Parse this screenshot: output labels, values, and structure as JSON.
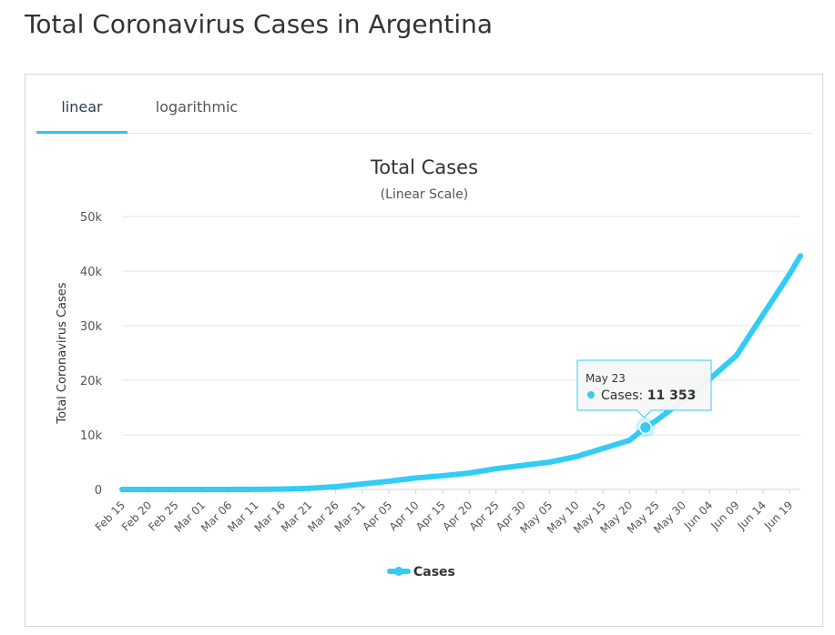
{
  "page": {
    "title": "Total Coronavirus Cases in Argentina"
  },
  "tabs": [
    {
      "label": "linear",
      "active": true
    },
    {
      "label": "logarithmic",
      "active": false
    }
  ],
  "colors": {
    "series": "#33ccf5",
    "active_tab_underline": "#33c3f0",
    "grid": "#e6e6e6"
  },
  "tooltip": {
    "date": "May 23",
    "series_label": "Cases: ",
    "value_text": "11 353"
  },
  "chart_data": {
    "type": "line",
    "title": "Total Cases",
    "subtitle": "(Linear Scale)",
    "xlabel": "",
    "ylabel": "Total Coronavirus Cases",
    "ylim": [
      0,
      50000
    ],
    "yticks": [
      0,
      10000,
      20000,
      30000,
      40000,
      50000
    ],
    "ytick_labels": [
      "0",
      "10k",
      "20k",
      "30k",
      "40k",
      "50k"
    ],
    "x_tick_labels": [
      "Feb 15",
      "Feb 20",
      "Feb 25",
      "Mar 01",
      "Mar 06",
      "Mar 11",
      "Mar 16",
      "Mar 21",
      "Mar 26",
      "Mar 31",
      "Apr 05",
      "Apr 10",
      "Apr 15",
      "Apr 20",
      "Apr 25",
      "Apr 30",
      "May 05",
      "May 10",
      "May 15",
      "May 20",
      "May 25",
      "May 30",
      "Jun 04",
      "Jun 09",
      "Jun 14",
      "Jun 19"
    ],
    "x_range": [
      "Feb 15",
      "Jun 21"
    ],
    "grid": true,
    "legend_position": "bottom-center",
    "series": [
      {
        "name": "Cases",
        "x": [
          "Feb 15",
          "Mar 01",
          "Mar 11",
          "Mar 16",
          "Mar 21",
          "Mar 26",
          "Mar 31",
          "Apr 05",
          "Apr 10",
          "Apr 15",
          "Apr 20",
          "Apr 25",
          "Apr 30",
          "May 05",
          "May 10",
          "May 15",
          "May 20",
          "May 23",
          "May 25",
          "May 30",
          "Jun 04",
          "Jun 09",
          "Jun 14",
          "Jun 16",
          "Jun 19",
          "Jun 21"
        ],
        "y": [
          0,
          0,
          20,
          60,
          200,
          500,
          1000,
          1500,
          2100,
          2500,
          3000,
          3800,
          4400,
          5000,
          6000,
          7500,
          9000,
          11353,
          12600,
          16300,
          20200,
          24500,
          32000,
          35000,
          39500,
          42800
        ]
      }
    ]
  }
}
